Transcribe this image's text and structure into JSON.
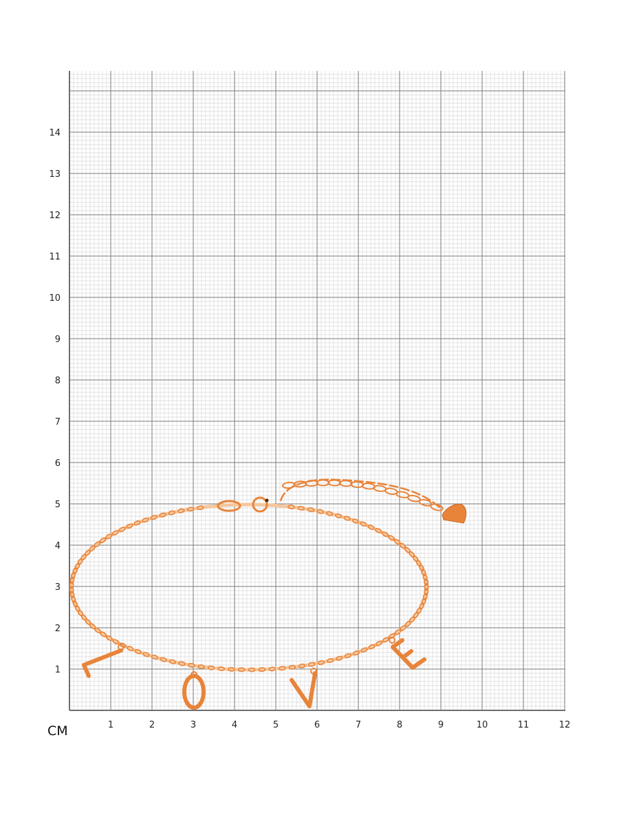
{
  "unit_label": "СМ",
  "x_ticks": [
    "1",
    "2",
    "3",
    "4",
    "5",
    "6",
    "7",
    "8",
    "9",
    "10",
    "11",
    "12"
  ],
  "y_ticks": [
    "1",
    "2",
    "3",
    "4",
    "5",
    "6",
    "7",
    "8",
    "9",
    "10",
    "11",
    "12",
    "13",
    "14"
  ],
  "pendant_letters": [
    "L",
    "O",
    "V",
    "E"
  ],
  "colors": {
    "gold": "#e8843a",
    "gold_light": "#f6c79c",
    "grid_minor": "#d8d8d8",
    "grid_major": "#7a7a7a",
    "axis": "#6e6e6e"
  }
}
